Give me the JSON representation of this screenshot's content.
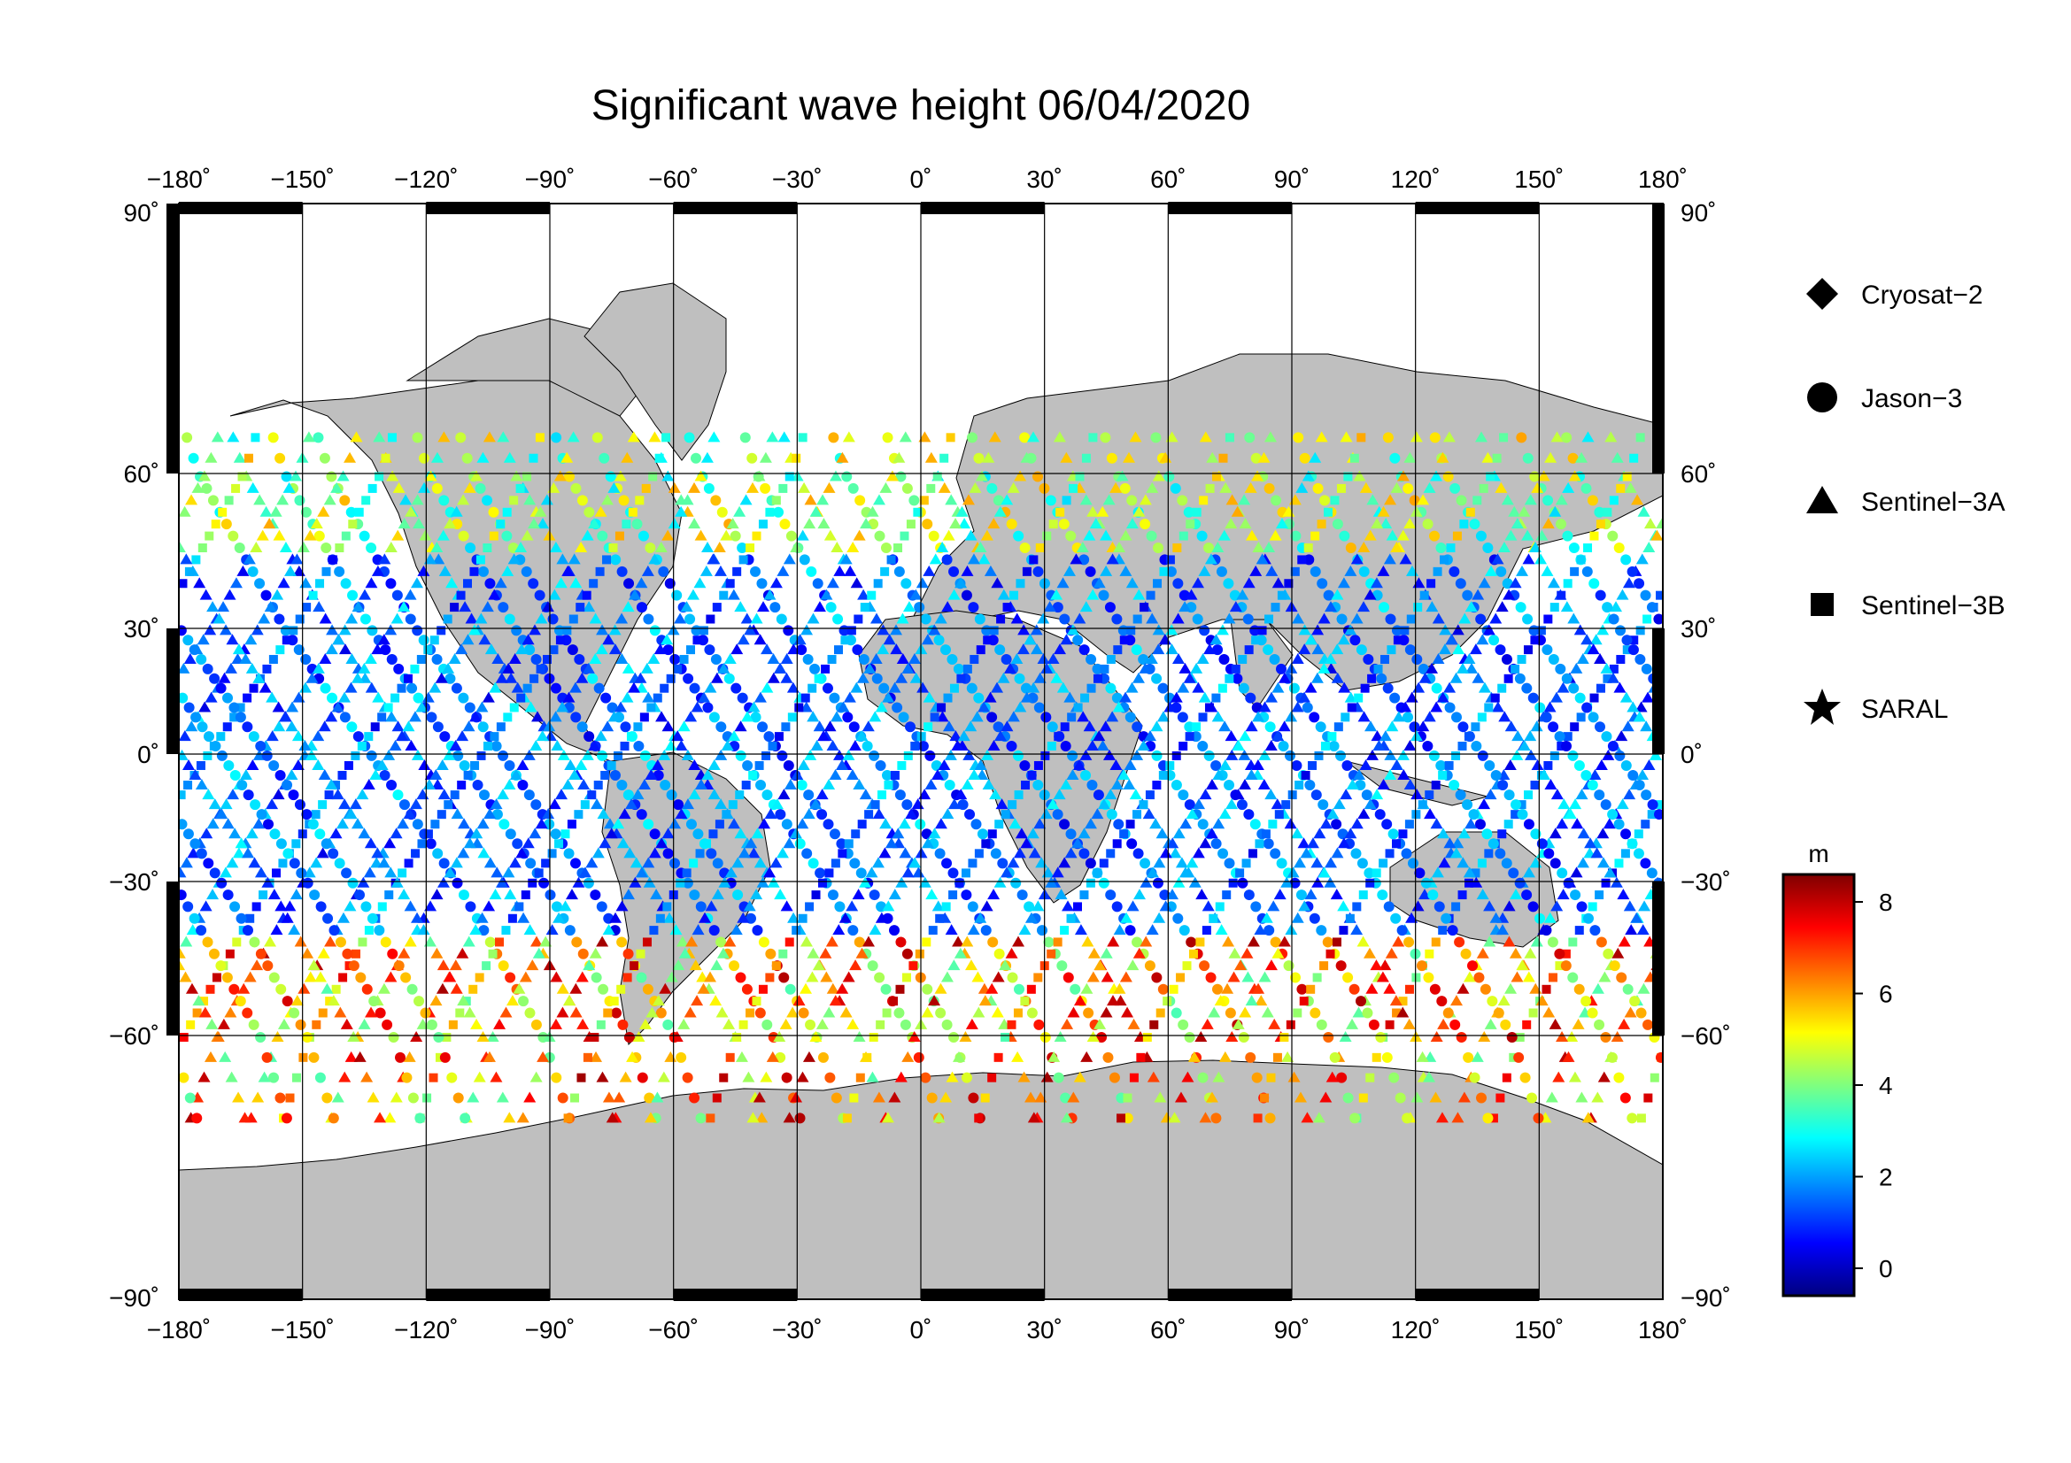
{
  "title": "Significant wave height 06/04/2020",
  "map": {
    "lon_ticks": [
      "−180˚",
      "−150˚",
      "−120˚",
      "−90˚",
      "−60˚",
      "−30˚",
      "0˚",
      "30˚",
      "60˚",
      "90˚",
      "120˚",
      "150˚",
      "180˚"
    ],
    "lat_ticks_left": [
      "90˚",
      "60˚",
      "30˚",
      "0˚",
      "−30˚",
      "−60˚",
      "−90˚"
    ],
    "lat_ticks_right": [
      "90˚",
      "60˚",
      "30˚",
      "0˚",
      "−30˚",
      "−60˚",
      "−90˚"
    ],
    "lon_range": [
      -180,
      180
    ],
    "lat_range": [
      -90,
      90
    ],
    "projection": "Mercator",
    "grid": true,
    "colors": {
      "land": "#bfbfbf",
      "ocean": "#ffffff",
      "grid": "#000000"
    }
  },
  "legend": {
    "placement": "right",
    "items": [
      {
        "label": "Cryosat−2",
        "marker": "diamond"
      },
      {
        "label": "Jason−3",
        "marker": "circle"
      },
      {
        "label": "Sentinel−3A",
        "marker": "triangle"
      },
      {
        "label": "Sentinel−3B",
        "marker": "square"
      },
      {
        "label": "SARAL",
        "marker": "star"
      }
    ]
  },
  "colorbar": {
    "unit": "m",
    "ticks": [
      "8",
      "6",
      "4",
      "2",
      "0"
    ],
    "range": [
      -0.6,
      8.6
    ],
    "colormap": [
      "#00007f",
      "#0000ff",
      "#007fff",
      "#00ffff",
      "#7fff7f",
      "#ffff00",
      "#ff7f00",
      "#ff0000",
      "#7f0000"
    ]
  }
}
